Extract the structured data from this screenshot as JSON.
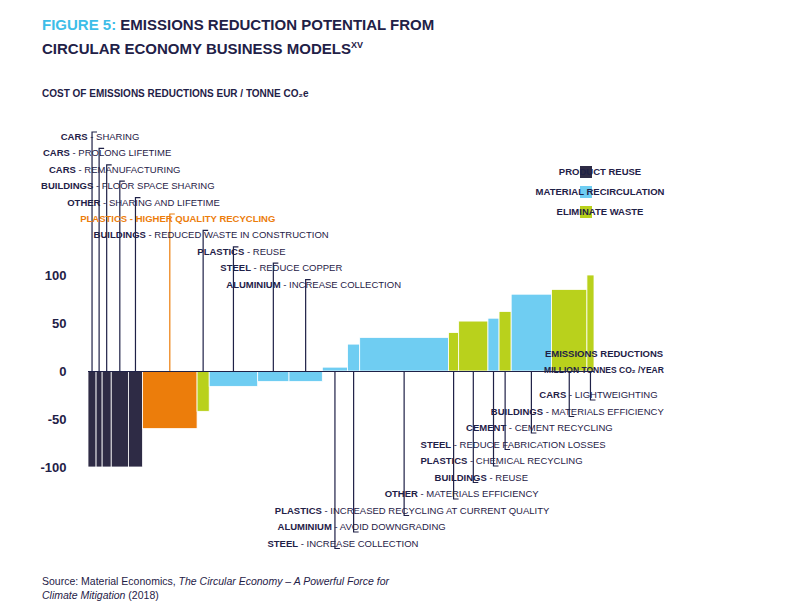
{
  "chart_data": {
    "type": "bar",
    "title": "FIGURE 5: EMISSIONS REDUCTION POTENTIAL FROM CIRCULAR ECONOMY BUSINESS MODELS",
    "title_superscript": "XV",
    "ylabel": "COST OF EMISSIONS REDUCTIONS EUR / TONNE CO₂e",
    "xlabel": "EMISSIONS REDUCTIONS",
    "xlabel_units": "MILLION TONNES CO₂ /YEAR",
    "categories": [
      "CARS - SHARING",
      "CARS - PROLONG LIFETIME",
      "CARS - REMANUFACTURING",
      "BUILDINGS - FLOOR SPACE SHARING",
      "OTHER - SHARING AND LIFETIME",
      "PLASTICS - HIGHER QUALITY RECYCLING",
      "BUILDINGS - REDUCED WASTE IN CONSTRUCTION",
      "PLASTICS - REUSE",
      "STEEL - REDUCE COPPER",
      "ALUMINIUM - INCREASE COLLECTION",
      "STEEL - INCREASE COLLECTION",
      "ALUMINIUM - AVOID DOWNGRADING",
      "PLASTICS - INCREASED RECYCLING AT CURRENT QUALITY",
      "OTHER - MATERIALS EFFICIENCY",
      "BUILDINGS - REUSE",
      "PLASTICS - CHEMICAL RECYCLING",
      "STEEL - REDUCE FABRICATION LOSSES",
      "CEMENT - CEMENT RECYCLING",
      "BUILDINGS - MATERIALS EFFICIENCY",
      "CARS - LIGHTWEIGHTING"
    ],
    "widths": [
      8,
      6,
      9,
      17,
      14,
      54,
      12,
      48,
      31,
      33,
      25,
      12,
      88,
      10,
      29,
      11,
      12,
      40,
      35,
      7
    ],
    "values": [
      -100,
      -100,
      -100,
      -100,
      -100,
      -60,
      -42,
      -16,
      -11,
      -11,
      4,
      28,
      35,
      40,
      52,
      55,
      62,
      80,
      85,
      100
    ],
    "groups": [
      "PRODUCT REUSE",
      "PRODUCT REUSE",
      "PRODUCT REUSE",
      "PRODUCT REUSE",
      "PRODUCT REUSE",
      "MATERIAL RECIRCULATION",
      "ELIMINATE WASTE",
      "MATERIAL RECIRCULATION",
      "MATERIAL RECIRCULATION",
      "MATERIAL RECIRCULATION",
      "MATERIAL RECIRCULATION",
      "MATERIAL RECIRCULATION",
      "MATERIAL RECIRCULATION",
      "ELIMINATE WASTE",
      "ELIMINATE WASTE",
      "MATERIAL RECIRCULATION",
      "ELIMINATE WASTE",
      "MATERIAL RECIRCULATION",
      "ELIMINATE WASTE",
      "ELIMINATE WASTE"
    ],
    "colors": [
      "#2e2b45",
      "#2e2b45",
      "#2e2b45",
      "#2e2b45",
      "#2e2b45",
      "#ec7d0b",
      "#b9d11c",
      "#6fcdf2",
      "#6fcdf2",
      "#6fcdf2",
      "#6fcdf2",
      "#6fcdf2",
      "#6fcdf2",
      "#b9d11c",
      "#b9d11c",
      "#6fcdf2",
      "#b9d11c",
      "#6fcdf2",
      "#b9d11c",
      "#b9d11c"
    ],
    "legend_items": [
      {
        "name": "PRODUCT REUSE",
        "color": "#2e2b45"
      },
      {
        "name": "MATERIAL RECIRCULATION",
        "color": "#6fcdf2"
      },
      {
        "name": "ELIMINATE WASTE",
        "color": "#b9d11c"
      }
    ],
    "legend": "top-right",
    "xlim": [
      0,
      501
    ],
    "ylim": [
      -100,
      100
    ],
    "yticks": [
      -100,
      -50,
      0,
      50,
      100
    ],
    "grid": false,
    "tick_labels": "y",
    "source": {
      "text": "Source: Material Economics, ",
      "publication": "The Circular Economy – A Powerful Force for Climate Mitigation",
      "year": "(2018)"
    }
  }
}
